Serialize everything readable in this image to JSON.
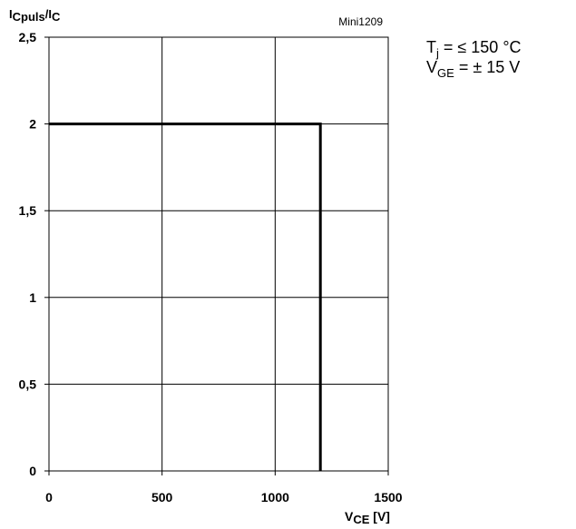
{
  "chart_data": {
    "type": "line",
    "id_label": "Mini1209",
    "ylabel": {
      "main": "I",
      "sub1": "Cpuls",
      "slash": "/I",
      "sub2": "C"
    },
    "xlabel": {
      "main": "V",
      "sub": "CE",
      "unit": " [V]"
    },
    "conditions": {
      "line1": {
        "main": "T",
        "sub": "j",
        "rest": " = ≤ 150 °C"
      },
      "line2": {
        "main": "V",
        "sub": "GE",
        "rest": " = ± 15 V"
      }
    },
    "xlim": [
      0,
      1500
    ],
    "ylim": [
      0,
      2.5
    ],
    "xticks": [
      {
        "value": 0,
        "label": "0"
      },
      {
        "value": 500,
        "label": "500"
      },
      {
        "value": 1000,
        "label": "1000"
      },
      {
        "value": 1500,
        "label": "1500"
      }
    ],
    "yticks": [
      {
        "value": 0,
        "label": "0"
      },
      {
        "value": 0.5,
        "label": "0,5"
      },
      {
        "value": 1,
        "label": "1"
      },
      {
        "value": 1.5,
        "label": "1,5"
      },
      {
        "value": 2,
        "label": "2"
      },
      {
        "value": 2.5,
        "label": "2,5"
      }
    ],
    "grid": true,
    "series": [
      {
        "points": [
          [
            0,
            2
          ],
          [
            1200,
            2
          ],
          [
            1200,
            0
          ]
        ]
      }
    ]
  }
}
